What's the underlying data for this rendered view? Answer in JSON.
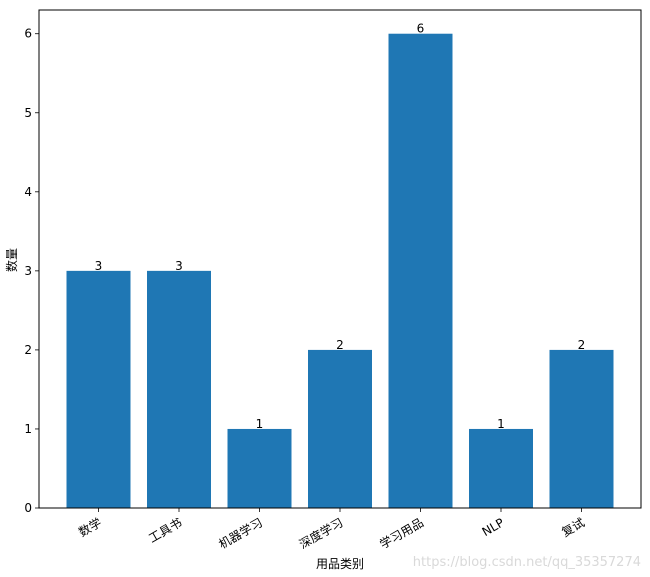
{
  "chart_data": {
    "type": "bar",
    "title": "",
    "xlabel": "用品类别",
    "ylabel": "数量",
    "categories": [
      "数学",
      "工具书",
      "机器学习",
      "深度学习",
      "学习用品",
      "NLP",
      "复试"
    ],
    "values": [
      3,
      3,
      1,
      2,
      6,
      1,
      2
    ],
    "ylim": [
      0,
      6.3
    ],
    "yticks": [
      0,
      1,
      2,
      3,
      4,
      5,
      6
    ],
    "bar_color": "#1f77b4",
    "grid": false,
    "legend": "none",
    "xtick_rotation_deg": -30
  },
  "watermark": "https://blog.csdn.net/qq_35357274"
}
